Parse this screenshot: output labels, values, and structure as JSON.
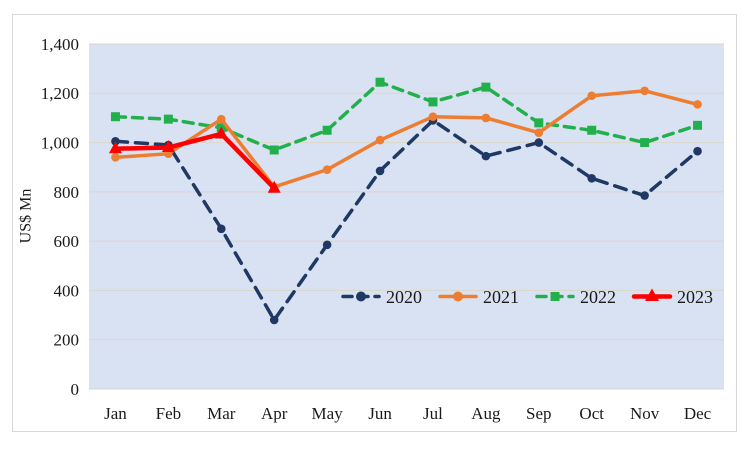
{
  "colors": {
    "plot_bg": "#d9e2f3",
    "gridline": "#dbd6ca",
    "figure_border": "#d8d8d8",
    "axis_text": "#1a1a1a",
    "series_2020": "#1f3864",
    "series_2021": "#ed7d31",
    "series_2022": "#22b04c",
    "series_2023": "#fe0000"
  },
  "chart_data": {
    "type": "line",
    "title": "",
    "xlabel": "",
    "ylabel": "US$ Mn",
    "ylim": [
      0,
      1400
    ],
    "ytick_step": 200,
    "ytick_labels": [
      "0",
      "200",
      "400",
      "600",
      "800",
      "1,000",
      "1,200",
      "1,400"
    ],
    "categories": [
      "Jan",
      "Feb",
      "Mar",
      "Apr",
      "May",
      "Jun",
      "Jul",
      "Aug",
      "Sep",
      "Oct",
      "Nov",
      "Dec"
    ],
    "grid": true,
    "legend_position": "inside-bottom-right",
    "series": [
      {
        "name": "2020",
        "color": "#1f3864",
        "line_style": "dashed",
        "marker": "circle",
        "values": [
          1005,
          990,
          650,
          280,
          585,
          885,
          1090,
          945,
          1000,
          855,
          785,
          965
        ]
      },
      {
        "name": "2022",
        "color": "#22b04c",
        "line_style": "dashed",
        "marker": "square",
        "values": [
          1105,
          1095,
          1060,
          970,
          1050,
          1245,
          1165,
          1225,
          1080,
          1050,
          1000,
          1070
        ]
      },
      {
        "name": "2021",
        "color": "#ed7d31",
        "line_style": "solid",
        "marker": "circle",
        "values": [
          940,
          955,
          1095,
          820,
          890,
          1010,
          1105,
          1100,
          1040,
          1190,
          1210,
          1155
        ]
      },
      {
        "name": "2023",
        "color": "#fe0000",
        "line_style": "solid",
        "marker": "triangle",
        "values": [
          975,
          980,
          1035,
          815,
          null,
          null,
          null,
          null,
          null,
          null,
          null,
          null
        ]
      }
    ],
    "legend_order": [
      "2020",
      "2021",
      "2022",
      "2023"
    ]
  }
}
